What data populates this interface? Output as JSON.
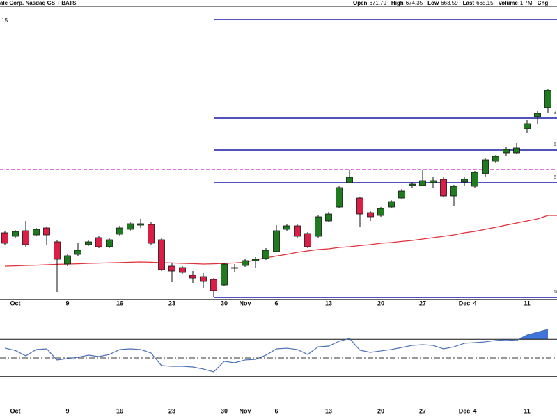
{
  "header": {
    "symbol": "ale Corp. Nasdaq GS + BATS",
    "quote": [
      {
        "name": "Open",
        "value": 671.79
      },
      {
        "name": "High",
        "value": 674.35
      },
      {
        "name": "Low",
        "value": 663.59
      },
      {
        "name": "Last",
        "value": 665.15
      },
      {
        "name": "Volume",
        "value": "1.7M"
      },
      {
        "name": "Chg"
      }
    ]
  },
  "chart_data": [
    {
      "type": "candlestick",
      "price_label": ".15",
      "categories": [
        null,
        "Oct",
        null,
        null,
        null,
        null,
        "9",
        null,
        null,
        null,
        null,
        "16",
        null,
        null,
        null,
        null,
        "23",
        null,
        null,
        null,
        null,
        "30",
        null,
        "Nov",
        null,
        null,
        "6",
        null,
        null,
        null,
        null,
        "13",
        null,
        null,
        null,
        null,
        "20",
        null,
        null,
        null,
        "27",
        null,
        null,
        null,
        "Dec",
        "4",
        null,
        null,
        null,
        null,
        "11",
        null,
        null
      ],
      "open": [
        567.5,
        565,
        569,
        566,
        571,
        561,
        545,
        552,
        559,
        564,
        557.5,
        566.5,
        570,
        573,
        573.5,
        562.5,
        543.5,
        542.5,
        537,
        536,
        534,
        530,
        542,
        544,
        547.5,
        549,
        554,
        570,
        572.5,
        567,
        565,
        576,
        586,
        603.5,
        592.5,
        582,
        580,
        586,
        592.5,
        601.5,
        601.5,
        603.5,
        606,
        594,
        604,
        601,
        610,
        619,
        625,
        625,
        642.5,
        651,
        657.5
      ],
      "high": [
        569,
        569.5,
        576,
        571,
        572,
        562.5,
        552,
        560,
        562.5,
        565,
        563.5,
        572.5,
        575.5,
        577.5,
        575,
        563.5,
        546,
        543.5,
        540,
        538.5,
        535,
        546,
        545,
        549,
        550,
        556.5,
        573,
        574,
        573.5,
        568,
        580,
        582.5,
        601,
        612.5,
        593.5,
        583,
        586,
        591,
        599,
        604,
        613,
        607.5,
        607.5,
        602,
        607.5,
        612,
        621,
        623.5,
        629,
        632,
        649,
        655,
        671
      ],
      "low": [
        559,
        564,
        557.5,
        565,
        559,
        525,
        543.5,
        551,
        558,
        556.5,
        556.5,
        565,
        568.5,
        571,
        559,
        540,
        532,
        538,
        531.5,
        527.5,
        521,
        529,
        539,
        543,
        542,
        548,
        554,
        568.5,
        564,
        556.5,
        564,
        575,
        585,
        603.5,
        572,
        576,
        579,
        585,
        591.5,
        600,
        601,
        600,
        593,
        587,
        601,
        600,
        607.5,
        618,
        622.5,
        624,
        639,
        646,
        654
      ],
      "close": [
        560,
        568.5,
        559,
        570,
        566,
        548.5,
        551,
        555,
        561,
        557.5,
        562.5,
        571,
        574,
        574,
        560,
        541,
        540,
        539,
        535,
        532.5,
        526,
        545,
        542.5,
        547.5,
        548.5,
        555,
        569,
        572.5,
        565,
        557.5,
        579,
        581,
        600,
        607.5,
        581,
        579,
        585,
        590,
        597.5,
        602.5,
        605,
        605,
        594,
        601,
        606,
        611,
        620,
        622.5,
        627.5,
        628.5,
        646,
        653.5,
        670
      ],
      "up_color": "#1e7b1e",
      "down_color": "#dc1e46",
      "ma": {
        "color": "#e0303a",
        "values": [
          543.5,
          543.7,
          544,
          544.2,
          544.5,
          544.8,
          545,
          545.2,
          545.5,
          545.7,
          545.9,
          546.1,
          546.3,
          546.5,
          546.3,
          546,
          545.8,
          545.5,
          545.3,
          545,
          545.2,
          545.5,
          545.8,
          546.3,
          548,
          549.5,
          550.8,
          552,
          553.5,
          554.5,
          555.5,
          556,
          557,
          557.5,
          558.3,
          559,
          560,
          560.5,
          561.3,
          562,
          563,
          564,
          565,
          566,
          567.5,
          568.5,
          570,
          571.5,
          573,
          574.5,
          576,
          577.5,
          580
        ]
      },
      "fib_lines": [
        {
          "value": 721
        },
        {
          "value": 650,
          "label": "3"
        },
        {
          "value": 627,
          "label": "5"
        },
        {
          "value": 603.5,
          "label": "6"
        },
        {
          "value": 521,
          "label": "10"
        }
      ],
      "fib_color": "#1a1aa8",
      "dashed_line": {
        "value": 613,
        "color": "#d020d0"
      },
      "ylim": [
        520,
        730
      ]
    },
    {
      "type": "line",
      "categories": [
        null,
        "Oct",
        null,
        null,
        null,
        null,
        "9",
        null,
        null,
        null,
        null,
        "16",
        null,
        null,
        null,
        null,
        "23",
        null,
        null,
        null,
        null,
        "30",
        null,
        "Nov",
        null,
        null,
        "6",
        null,
        null,
        null,
        null,
        "13",
        null,
        null,
        null,
        null,
        "20",
        null,
        null,
        null,
        "27",
        null,
        null,
        null,
        "Dec",
        "4",
        null,
        null,
        null,
        null,
        "11",
        null,
        null
      ],
      "values": [
        60.5,
        58,
        52.2,
        59,
        59.7,
        47.8,
        49.3,
        50.7,
        53,
        51.5,
        53.7,
        59,
        59.7,
        59,
        55.2,
        41.8,
        41,
        41,
        40.3,
        38.1,
        35.1,
        46.3,
        44.8,
        47.8,
        48.5,
        53,
        59.7,
        60.4,
        59,
        53.7,
        61.9,
        62.7,
        67.9,
        70.9,
        58.2,
        56,
        57.5,
        59,
        61.2,
        63.4,
        64.2,
        63.4,
        59.7,
        61.9,
        65.7,
        66.4,
        67.2,
        68.7,
        69.4,
        68.7,
        74.6,
        77.6,
        80.6
      ],
      "color": "#4a6fb5",
      "fill_color": "#3f74d8",
      "levels": [
        70,
        50,
        30
      ],
      "ylim": [
        0,
        100
      ]
    }
  ]
}
